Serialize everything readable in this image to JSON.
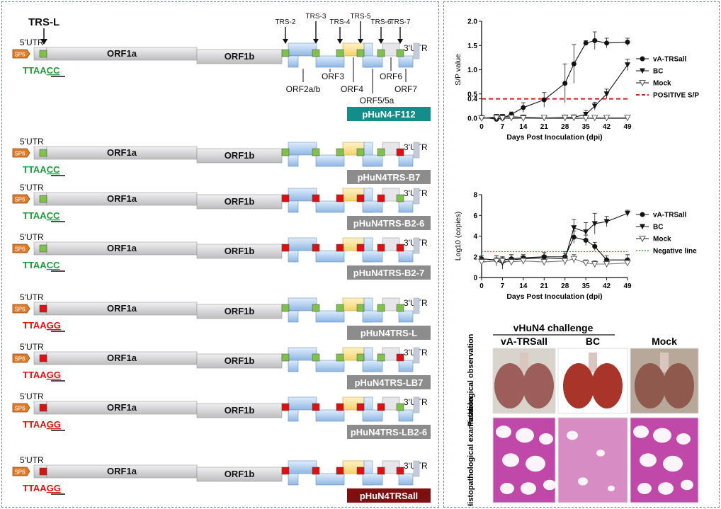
{
  "colors": {
    "bar_gray": "#cfcfd1",
    "sp6_orange": "#e07b2b",
    "green_box": "#7fc24a",
    "red_box": "#dd1111",
    "orf_blue": "#a9c8ea",
    "orf_yellow": "#ffe08a",
    "positive_line": "#d52020",
    "negative_line": "#2aa02a",
    "label_teal": "#138c8c",
    "label_gray": "#8c8c8c",
    "label_darkred": "#7d0f0f",
    "seq_green": "#1a9a3a",
    "seq_red": "#e01010"
  },
  "schematic": {
    "trs_l_label": "TRS-L",
    "trs_labels": [
      "TRS-2",
      "TRS-3",
      "TRS-4",
      "TRS-5",
      "TRS-6",
      "TRS-7"
    ],
    "utr5": "5'UTR",
    "utr3": "3'UTR",
    "sp6": "SP6",
    "orf1a": "ORF1a",
    "orf1b": "ORF1b",
    "orf_labels": {
      "orf2": "ORF2a/b",
      "orf3": "ORF3",
      "orf4": "ORF4",
      "orf5": "ORF5/5a",
      "orf6": "ORF6",
      "orf7": "ORF7"
    },
    "seq_wt": {
      "prefix": "TTAA",
      "tail": "CC"
    },
    "seq_mut": {
      "prefix": "TTAA",
      "tail": "GG"
    },
    "constructs": [
      {
        "name": "pHuN4-F112",
        "label_color": "teal",
        "leader": "green",
        "trs": [
          "green",
          "green",
          "green",
          "green",
          "green",
          "green"
        ]
      },
      {
        "name": "pHuN4TRS-B7",
        "label_color": "gray",
        "leader": "green",
        "trs": [
          "green",
          "green",
          "green",
          "green",
          "green",
          "red"
        ]
      },
      {
        "name": "pHuN4TRS-B2-6",
        "label_color": "gray",
        "leader": "green",
        "trs": [
          "red",
          "red",
          "red",
          "red",
          "red",
          "green"
        ]
      },
      {
        "name": "pHuN4TRS-B2-7",
        "label_color": "gray",
        "leader": "green",
        "trs": [
          "red",
          "red",
          "red",
          "red",
          "red",
          "red"
        ]
      },
      {
        "name": "pHuN4TRS-L",
        "label_color": "gray",
        "leader": "red",
        "trs": [
          "green",
          "green",
          "green",
          "green",
          "green",
          "green"
        ]
      },
      {
        "name": "pHuN4TRS-LB7",
        "label_color": "gray",
        "leader": "red",
        "trs": [
          "green",
          "green",
          "green",
          "green",
          "green",
          "red"
        ]
      },
      {
        "name": "pHuN4TRS-LB2-6",
        "label_color": "gray",
        "leader": "red",
        "trs": [
          "red",
          "red",
          "red",
          "red",
          "red",
          "green"
        ]
      },
      {
        "name": "pHuN4TRSall",
        "label_color": "darkred",
        "leader": "red",
        "trs": [
          "red",
          "red",
          "red",
          "red",
          "red",
          "red"
        ]
      }
    ]
  },
  "chart_data": [
    {
      "type": "line",
      "title": "",
      "xlabel": "Days Post Inoculation (dpi)",
      "ylabel": "S/P value",
      "xlim": [
        0,
        49
      ],
      "ylim": [
        0,
        2.0
      ],
      "x_ticks": [
        0,
        7,
        14,
        21,
        28,
        35,
        42,
        49
      ],
      "y_ticks": [
        "0.0",
        "0.4",
        "0.5",
        "1.0",
        "1.5",
        "2.0"
      ],
      "legend_position": "right",
      "series": [
        {
          "name": "vA-TRSall",
          "marker": "circle",
          "x": [
            0,
            5,
            7,
            10,
            14,
            21,
            28,
            31,
            35,
            38,
            42,
            49
          ],
          "y": [
            0.02,
            -0.02,
            0.0,
            0.08,
            0.22,
            0.38,
            0.72,
            1.12,
            1.55,
            1.6,
            1.55,
            1.57
          ],
          "err": [
            0.03,
            0.05,
            0.04,
            0.05,
            0.1,
            0.15,
            0.4,
            0.4,
            0.05,
            0.18,
            0.1,
            0.08
          ]
        },
        {
          "name": "BC",
          "marker": "triangle-down",
          "x": [
            0,
            5,
            7,
            10,
            14,
            21,
            28,
            31,
            35,
            38,
            42,
            49
          ],
          "y": [
            0.0,
            0.03,
            0.03,
            0.03,
            0.02,
            0.01,
            0.02,
            0.02,
            0.08,
            0.25,
            0.5,
            1.1
          ],
          "err": [
            0.03,
            0.05,
            0.05,
            0.03,
            0.04,
            0.04,
            0.04,
            0.05,
            0.08,
            0.08,
            0.1,
            0.12
          ]
        },
        {
          "name": "Mock",
          "marker": "triangle-down-open",
          "x": [
            0,
            5,
            7,
            10,
            14,
            21,
            28,
            31,
            35,
            38,
            42,
            49
          ],
          "y": [
            0.0,
            0.01,
            0.0,
            0.01,
            0.0,
            0.01,
            0.01,
            0.01,
            0.0,
            0.01,
            0.01,
            0.01
          ],
          "err": [
            0.02,
            0.02,
            0.02,
            0.02,
            0.02,
            0.02,
            0.02,
            0.02,
            0.02,
            0.02,
            0.02,
            0.02
          ]
        }
      ],
      "reference_line": {
        "name": "POSITIVE S/P",
        "y": 0.4,
        "style": "dashed"
      }
    },
    {
      "type": "line",
      "title": "",
      "xlabel": "Days Post Inoculation (dpi)",
      "ylabel": "Log10 (copies)",
      "xlim": [
        0,
        49
      ],
      "ylim": [
        0,
        8
      ],
      "x_ticks": [
        0,
        7,
        14,
        21,
        28,
        35,
        42,
        49
      ],
      "y_ticks": [
        0,
        2,
        4,
        6,
        8
      ],
      "legend_position": "right",
      "series": [
        {
          "name": "vA-TRSall",
          "marker": "circle",
          "x": [
            0,
            5,
            7,
            10,
            14,
            21,
            28,
            31,
            35,
            38,
            42,
            49
          ],
          "y": [
            1.8,
            1.7,
            1.7,
            1.8,
            1.9,
            2.0,
            2.0,
            3.9,
            3.6,
            3.0,
            1.7,
            1.7
          ],
          "err": [
            0.3,
            0.4,
            0.3,
            0.4,
            0.3,
            0.4,
            0.5,
            0.6,
            0.5,
            0.4,
            0.4,
            0.5
          ]
        },
        {
          "name": "BC",
          "marker": "triangle-down",
          "x": [
            0,
            5,
            7,
            10,
            14,
            21,
            28,
            31,
            35,
            38,
            42,
            49
          ],
          "y": [
            1.5,
            1.6,
            1.4,
            1.7,
            1.8,
            1.9,
            1.8,
            4.8,
            4.4,
            5.2,
            5.4,
            6.2
          ],
          "err": [
            0.4,
            0.5,
            0.6,
            0.5,
            0.4,
            0.5,
            0.5,
            0.8,
            0.9,
            1.0,
            0.5,
            0.3
          ]
        },
        {
          "name": "Mock",
          "marker": "triangle-down-open",
          "x": [
            0,
            5,
            7,
            10,
            14,
            21,
            28,
            31,
            35,
            38,
            42,
            49
          ],
          "y": [
            1.5,
            1.6,
            1.6,
            1.5,
            1.6,
            1.5,
            1.6,
            1.8,
            1.4,
            1.3,
            1.3,
            1.4
          ],
          "err": [
            0.3,
            0.3,
            0.3,
            0.3,
            0.3,
            0.3,
            0.4,
            0.4,
            0.3,
            0.3,
            0.3,
            0.3
          ]
        }
      ],
      "reference_line": {
        "name": "Negative line",
        "y": 2.5,
        "style": "dotted"
      }
    }
  ],
  "histology": {
    "challenge_title": "vHuN4 challenge",
    "columns": [
      "vA-TRSall",
      "BC",
      "Mock"
    ],
    "rows": [
      "Pathological observation",
      "Histopathological examination"
    ]
  }
}
